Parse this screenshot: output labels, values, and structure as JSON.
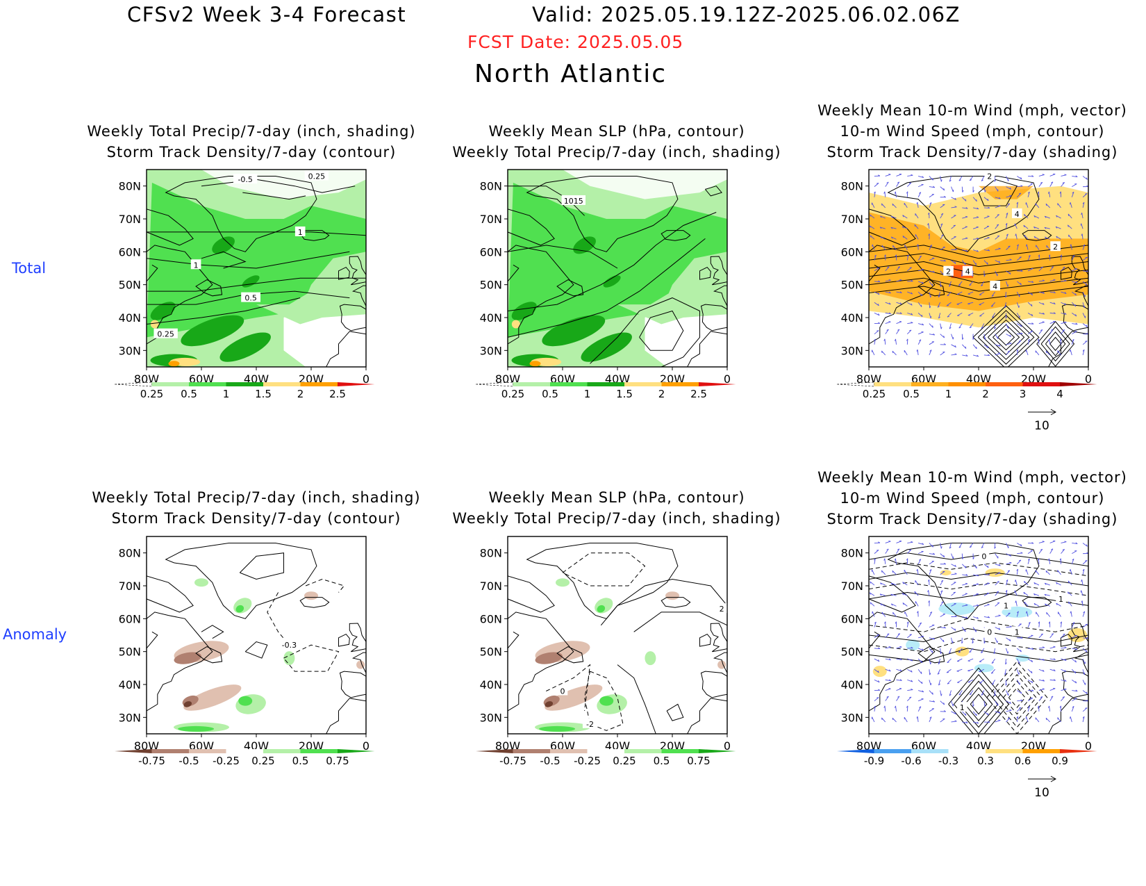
{
  "header": {
    "title": "CFSv2  Week 3-4 Forecast",
    "valid": "Valid: 2025.05.19.12Z-2025.06.02.06Z",
    "fcst_date": "FCST Date: 2025.05.05",
    "region": "North Atlantic"
  },
  "rows": [
    {
      "label": "Total"
    },
    {
      "label": "Anomaly"
    }
  ],
  "colors": {
    "label_blue": "#1f3fff",
    "fcst_red": "#ff2020",
    "green_light": "#b4f0a8",
    "green_mid": "#50e050",
    "green_dark": "#18a818",
    "yellow": "#ffe080",
    "orange": "#ffa000",
    "red": "#e01010",
    "brown_light": "#e0c0b0",
    "brown_mid": "#b08070",
    "brown_dark": "#704030",
    "vector": "#5050e0"
  },
  "map": {
    "lat_labels": [
      "80N",
      "70N",
      "60N",
      "50N",
      "40N",
      "30N"
    ],
    "lon_labels": [
      "80W",
      "60W",
      "40W",
      "20W",
      "0"
    ]
  },
  "panels": [
    {
      "title": [
        "Weekly Total Precip/7-day (inch, shading)",
        "Storm Track Density/7-day (contour)"
      ],
      "variant": "precip-total",
      "contour_labels": [
        "-0.5",
        "0.25",
        "1",
        "1",
        "0.5",
        "0.25"
      ],
      "colorbar": [
        "0.25",
        "0.5",
        "1",
        "1.5",
        "2",
        "2.5"
      ]
    },
    {
      "title": [
        "Weekly Mean SLP (hPa, contour)",
        "Weekly Total Precip/7-day (inch, shading)"
      ],
      "variant": "slp-total",
      "contour_labels": [
        "1015"
      ],
      "colorbar": [
        "0.25",
        "0.5",
        "1",
        "1.5",
        "2",
        "2.5"
      ]
    },
    {
      "title": [
        "Weekly Mean 10-m Wind (mph, vector)",
        "10-m Wind Speed (mph, contour)",
        "Storm Track Density/7-day (shading)"
      ],
      "variant": "wind-total",
      "contour_labels": [
        "2",
        "4",
        "2",
        "2",
        "4",
        "4",
        "4"
      ],
      "colorbar": [
        "0.25",
        "0.5",
        "1",
        "2",
        "3",
        "4"
      ],
      "vector_ref": "10"
    },
    {
      "title": [
        "Weekly Total Precip/7-day (inch, shading)",
        "Storm Track Density/7-day (contour)"
      ],
      "variant": "precip-anom",
      "contour_labels": [
        "-0.3"
      ],
      "colorbar": [
        "-0.75",
        "-0.5",
        "-0.25",
        "0.25",
        "0.5",
        "0.75"
      ]
    },
    {
      "title": [
        "Weekly Mean SLP (hPa, contour)",
        "Weekly Total Precip/7-day (inch, shading)"
      ],
      "variant": "slp-anom",
      "contour_labels": [
        "2",
        "0",
        "-2"
      ],
      "colorbar": [
        "-0.75",
        "-0.5",
        "-0.25",
        "0.25",
        "0.5",
        "0.75"
      ]
    },
    {
      "title": [
        "Weekly Mean 10-m Wind (mph, vector)",
        "10-m Wind Speed (mph, contour)",
        "Storm Track Density/7-day (shading)"
      ],
      "variant": "wind-anom",
      "contour_labels": [
        "0",
        "1",
        "1",
        "0",
        "1",
        "1"
      ],
      "colorbar": [
        "-0.9",
        "-0.6",
        "-0.3",
        "0.3",
        "0.6",
        "0.9"
      ],
      "vector_ref": "10"
    }
  ]
}
